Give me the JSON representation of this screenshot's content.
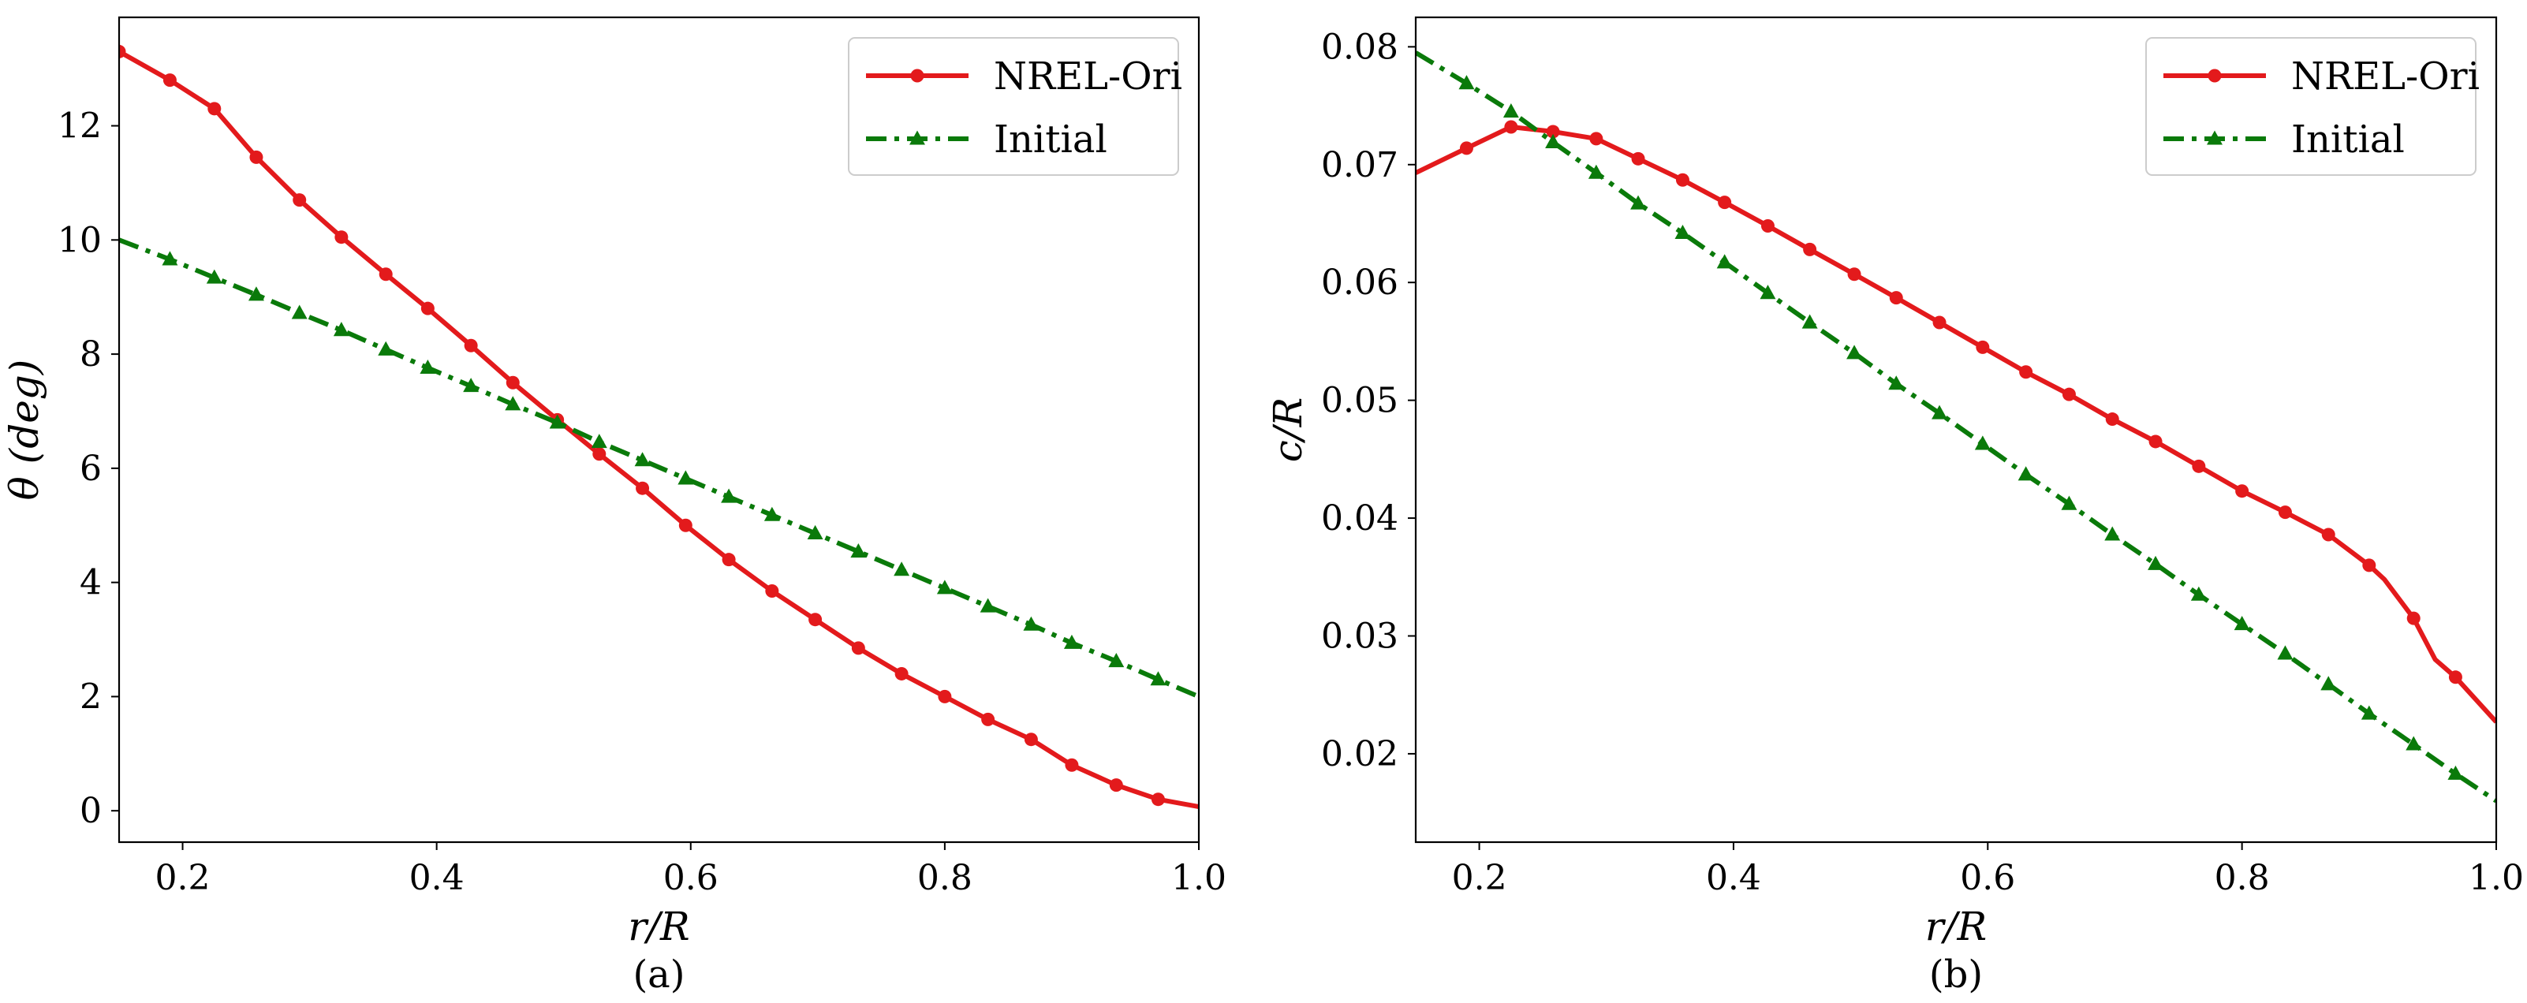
{
  "colors": {
    "nrel": "#e31a1c",
    "initial": "#0a7a0a",
    "axis": "#000000",
    "legend_border": "#cccccc"
  },
  "chart_data": [
    {
      "type": "line",
      "caption": "(a)",
      "xlabel": "r/R",
      "ylabel": "θ (deg)",
      "xlim": [
        0.15,
        1.0
      ],
      "ylim": [
        -0.55,
        13.9
      ],
      "xticks": [
        0.2,
        0.4,
        0.6,
        0.8,
        1.0
      ],
      "xtick_labels": [
        "0.2",
        "0.4",
        "0.6",
        "0.8",
        "1.0"
      ],
      "yticks": [
        0,
        2,
        4,
        6,
        8,
        10,
        12
      ],
      "ytick_labels": [
        "0",
        "2",
        "4",
        "6",
        "8",
        "10",
        "12"
      ],
      "legend": {
        "position": "top-right",
        "entries": [
          "NREL-Ori",
          "Initial"
        ]
      },
      "series": [
        {
          "name": "NREL-Ori",
          "line": "solid",
          "marker": "circle",
          "color_key": "nrel",
          "x": [
            0.15,
            0.19,
            0.225,
            0.258,
            0.292,
            0.325,
            0.36,
            0.393,
            0.427,
            0.46,
            0.495,
            0.528,
            0.562,
            0.596,
            0.63,
            0.664,
            0.698,
            0.732,
            0.766,
            0.8,
            0.834,
            0.868,
            0.9,
            0.935,
            0.968,
            1.0
          ],
          "values": [
            13.3,
            12.8,
            12.3,
            11.45,
            10.7,
            10.05,
            9.4,
            8.8,
            8.15,
            7.5,
            6.85,
            6.25,
            5.65,
            5.0,
            4.4,
            3.85,
            3.35,
            2.85,
            2.4,
            2.0,
            1.6,
            1.25,
            0.8,
            0.45,
            0.2,
            0.07
          ],
          "markers_shown": [
            true,
            true,
            true,
            true,
            true,
            true,
            true,
            true,
            true,
            true,
            true,
            true,
            true,
            true,
            true,
            true,
            true,
            true,
            true,
            true,
            true,
            true,
            true,
            true,
            true,
            false
          ]
        },
        {
          "name": "Initial",
          "line": "dashdot",
          "marker": "triangle",
          "color_key": "initial",
          "x": [
            0.15,
            0.19,
            0.225,
            0.258,
            0.292,
            0.325,
            0.36,
            0.393,
            0.427,
            0.46,
            0.495,
            0.528,
            0.562,
            0.596,
            0.63,
            0.664,
            0.698,
            0.732,
            0.766,
            0.8,
            0.834,
            0.868,
            0.9,
            0.935,
            0.968,
            1.0
          ],
          "values": [
            10.0,
            9.66,
            9.34,
            9.04,
            8.72,
            8.42,
            8.08,
            7.76,
            7.44,
            7.12,
            6.8,
            6.46,
            6.14,
            5.82,
            5.5,
            5.18,
            4.86,
            4.54,
            4.22,
            3.9,
            3.58,
            3.26,
            2.94,
            2.62,
            2.3,
            2.0
          ],
          "markers_shown": [
            false,
            true,
            true,
            true,
            true,
            true,
            true,
            true,
            true,
            true,
            true,
            true,
            true,
            true,
            true,
            true,
            true,
            true,
            true,
            true,
            true,
            true,
            true,
            true,
            true,
            false
          ]
        }
      ]
    },
    {
      "type": "line",
      "caption": "(b)",
      "xlabel": "r/R",
      "ylabel": "c/R",
      "xlim": [
        0.15,
        1.0
      ],
      "ylim": [
        0.0125,
        0.0825
      ],
      "xticks": [
        0.2,
        0.4,
        0.6,
        0.8,
        1.0
      ],
      "xtick_labels": [
        "0.2",
        "0.4",
        "0.6",
        "0.8",
        "1.0"
      ],
      "yticks": [
        0.02,
        0.03,
        0.04,
        0.05,
        0.06,
        0.07,
        0.08
      ],
      "ytick_labels": [
        "0.02",
        "0.03",
        "0.04",
        "0.05",
        "0.06",
        "0.07",
        "0.08"
      ],
      "legend": {
        "position": "top-right",
        "entries": [
          "NREL-Ori",
          "Initial"
        ]
      },
      "series": [
        {
          "name": "NREL-Ori",
          "line": "solid",
          "marker": "circle",
          "color_key": "nrel",
          "x": [
            0.15,
            0.19,
            0.225,
            0.258,
            0.292,
            0.325,
            0.36,
            0.393,
            0.427,
            0.46,
            0.495,
            0.528,
            0.562,
            0.596,
            0.63,
            0.664,
            0.698,
            0.732,
            0.766,
            0.8,
            0.834,
            0.868,
            0.9,
            0.912,
            0.935,
            0.952,
            0.968,
            1.0
          ],
          "values": [
            0.0693,
            0.0714,
            0.0732,
            0.0728,
            0.0722,
            0.0705,
            0.0687,
            0.0668,
            0.0648,
            0.0628,
            0.0607,
            0.0587,
            0.0566,
            0.0545,
            0.0524,
            0.0505,
            0.0484,
            0.0465,
            0.0444,
            0.0423,
            0.0405,
            0.0386,
            0.036,
            0.0348,
            0.0315,
            0.028,
            0.0265,
            0.0227
          ],
          "markers_shown": [
            false,
            true,
            true,
            true,
            true,
            true,
            true,
            true,
            true,
            true,
            true,
            true,
            true,
            true,
            true,
            true,
            true,
            true,
            true,
            true,
            true,
            true,
            true,
            false,
            true,
            false,
            true,
            false
          ]
        },
        {
          "name": "Initial",
          "line": "dashdot",
          "marker": "triangle",
          "color_key": "initial",
          "x": [
            0.15,
            0.19,
            0.225,
            0.258,
            0.292,
            0.325,
            0.36,
            0.393,
            0.427,
            0.46,
            0.495,
            0.528,
            0.562,
            0.596,
            0.63,
            0.664,
            0.698,
            0.732,
            0.766,
            0.8,
            0.834,
            0.868,
            0.9,
            0.935,
            0.968,
            1.0
          ],
          "values": [
            0.0795,
            0.0769,
            0.0745,
            0.0719,
            0.0693,
            0.0667,
            0.0642,
            0.0617,
            0.0591,
            0.0566,
            0.054,
            0.0514,
            0.0489,
            0.0463,
            0.0437,
            0.0412,
            0.0386,
            0.0361,
            0.0335,
            0.031,
            0.0285,
            0.0259,
            0.0234,
            0.0208,
            0.0183,
            0.016
          ],
          "markers_shown": [
            false,
            true,
            true,
            true,
            true,
            true,
            true,
            true,
            true,
            true,
            true,
            true,
            true,
            true,
            true,
            true,
            true,
            true,
            true,
            true,
            true,
            true,
            true,
            true,
            true,
            false
          ]
        }
      ]
    }
  ]
}
